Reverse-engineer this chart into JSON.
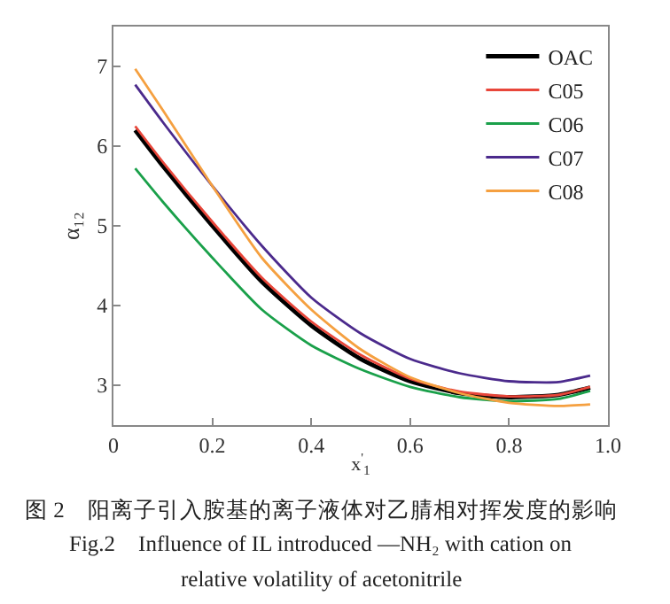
{
  "chart_data": {
    "type": "line",
    "xlabel": "x$^{'}$$_{1}$",
    "ylabel": "α₁₂",
    "x": [
      0.044,
      0.1,
      0.2,
      0.3,
      0.4,
      0.5,
      0.6,
      0.7,
      0.8,
      0.9,
      0.964
    ],
    "series": [
      {
        "name": "OAC",
        "color": "#000000",
        "values": [
          6.2,
          5.75,
          5.0,
          4.3,
          3.75,
          3.33,
          3.05,
          2.9,
          2.85,
          2.88,
          2.97
        ]
      },
      {
        "name": "C05",
        "color": "#e8463a",
        "values": [
          6.25,
          5.8,
          5.05,
          4.35,
          3.8,
          3.38,
          3.08,
          2.92,
          2.86,
          2.88,
          2.98
        ]
      },
      {
        "name": "C06",
        "color": "#1aa04a",
        "values": [
          5.72,
          5.3,
          4.6,
          3.95,
          3.5,
          3.2,
          2.98,
          2.85,
          2.8,
          2.83,
          2.93
        ]
      },
      {
        "name": "C07",
        "color": "#4b2a8c",
        "values": [
          6.77,
          6.3,
          5.5,
          4.75,
          4.1,
          3.65,
          3.33,
          3.15,
          3.05,
          3.04,
          3.12
        ]
      },
      {
        "name": "C08",
        "color": "#f5a040",
        "values": [
          6.97,
          6.45,
          5.5,
          4.6,
          3.95,
          3.45,
          3.1,
          2.9,
          2.78,
          2.74,
          2.76
        ]
      }
    ],
    "xlim": [
      0,
      1.0
    ],
    "xticks": [
      0,
      0.2,
      0.4,
      0.6,
      0.8,
      {
        "value": 1.0,
        "label": "1.0"
      }
    ],
    "ylim": [
      2.5,
      7.5
    ],
    "yticks": [
      3,
      4,
      5,
      6,
      7
    ],
    "grid": false,
    "legend": "top right",
    "marker": "none",
    "line_style": "solid",
    "annotations": [
      "图 2　阳离子引入胺基的离子液体对乙腈相对挥发度的影响",
      "Fig.2　Influence of IL introduced —NH₂ with cation on",
      "relative volatility of acetonitrile"
    ]
  }
}
